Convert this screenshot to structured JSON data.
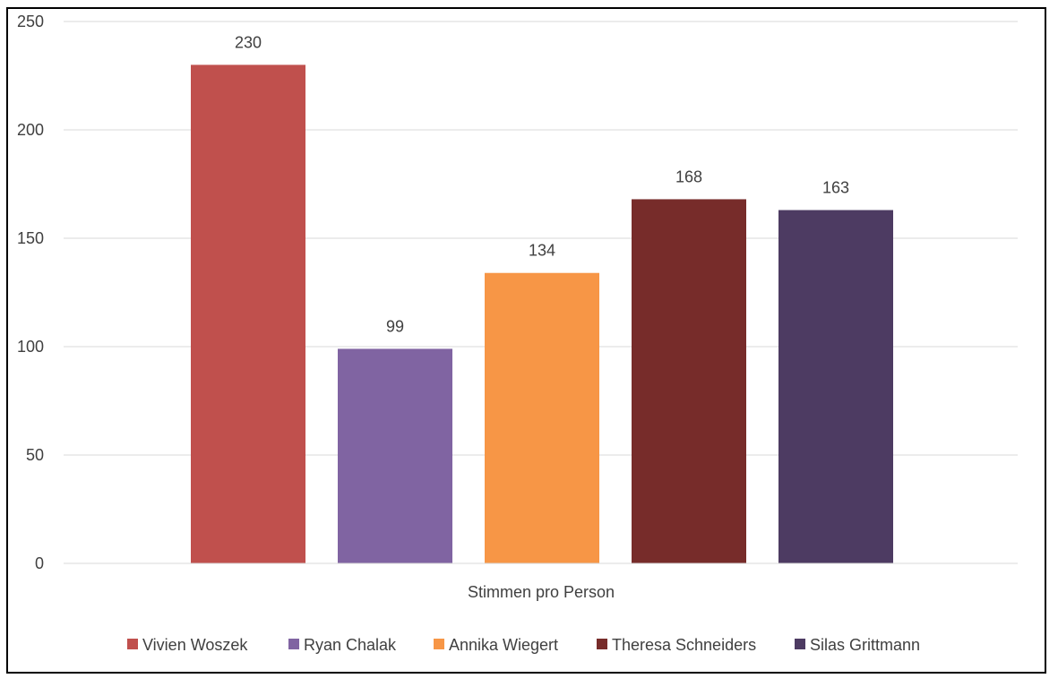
{
  "chart_data": {
    "type": "bar",
    "title": "",
    "xlabel": "",
    "ylabel": "",
    "categories": [
      "Stimmen pro Person"
    ],
    "series": [
      {
        "name": "Vivien Woszek",
        "values": [
          230
        ],
        "color": "#C0504D"
      },
      {
        "name": "Ryan Chalak",
        "values": [
          99
        ],
        "color": "#8064A2"
      },
      {
        "name": "Annika Wiegert",
        "values": [
          134
        ],
        "color": "#F79646"
      },
      {
        "name": "Theresa Schneiders",
        "values": [
          168
        ],
        "color": "#772C2A"
      },
      {
        "name": "Silas Grittmann",
        "values": [
          163
        ],
        "color": "#4D3B62"
      }
    ],
    "ylim": [
      0,
      250
    ],
    "yticks": [
      0,
      50,
      100,
      150,
      200,
      250
    ],
    "grid": true,
    "legend_position": "bottom",
    "data_labels": true
  }
}
